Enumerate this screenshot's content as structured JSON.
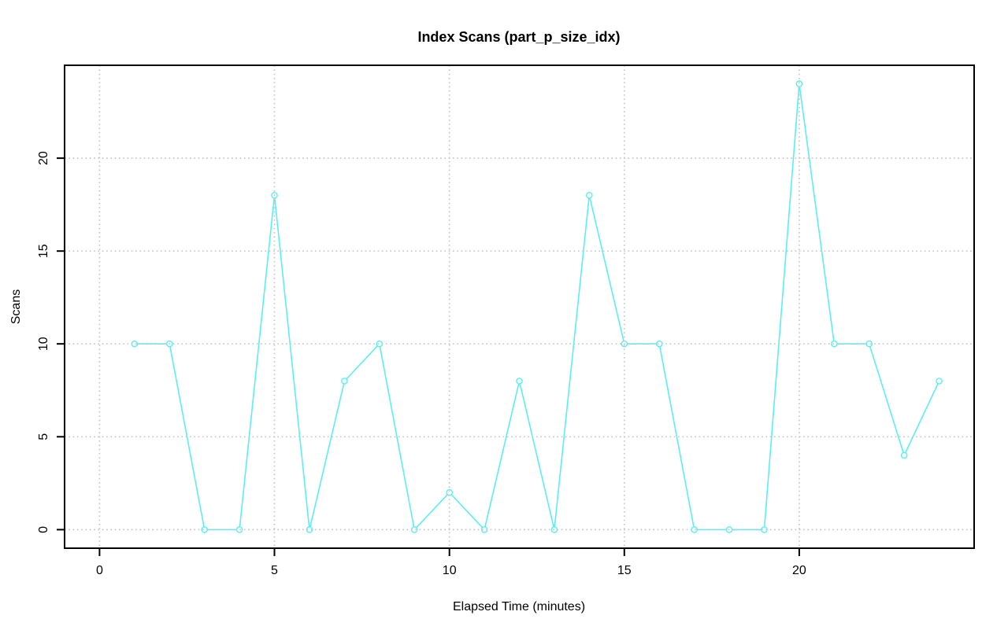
{
  "page": {
    "background": "#ffffff"
  },
  "chart_data": {
    "type": "line",
    "title": "Index Scans (part_p_size_idx)",
    "xlabel": "Elapsed Time (minutes)",
    "ylabel": "Scans",
    "x": [
      1,
      2,
      3,
      4,
      5,
      6,
      7,
      8,
      9,
      10,
      11,
      12,
      13,
      14,
      15,
      16,
      17,
      18,
      19,
      20,
      21,
      22,
      23,
      24
    ],
    "y": [
      10,
      10,
      0,
      0,
      18,
      0,
      8,
      10,
      0,
      2,
      0,
      8,
      0,
      18,
      10,
      10,
      0,
      0,
      0,
      24,
      10,
      10,
      4,
      8
    ],
    "xticks": [
      0,
      5,
      10,
      15,
      20
    ],
    "yticks": [
      0,
      5,
      10,
      15,
      20
    ],
    "xlim": [
      -1,
      25
    ],
    "ylim": [
      -1,
      25
    ],
    "grid": true,
    "grid_style": "dotted",
    "legend_position": "none",
    "marker": "open-circle",
    "line_style": "solid",
    "colors": {
      "series": "#5CEEF2",
      "marker_fill": "#FFFFFF",
      "grid": "#C8C8C8",
      "axis": "#000000",
      "text": "#000000",
      "background": "#FFFFFF"
    }
  }
}
